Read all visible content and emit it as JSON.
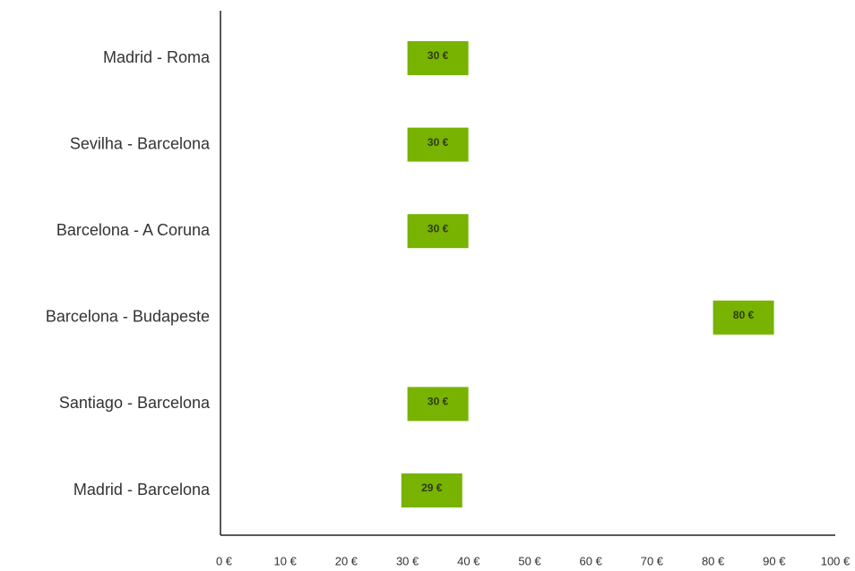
{
  "chart_data": {
    "type": "dot",
    "categories": [
      "Madrid - Roma",
      "Sevilha - Barcelona",
      "Barcelona - A Coruna",
      "Barcelona - Budapeste",
      "Santiago - Barcelona",
      "Madrid - Barcelona"
    ],
    "values": [
      30,
      30,
      30,
      80,
      30,
      29
    ],
    "value_labels": [
      "30 €",
      "30 €",
      "30 €",
      "80 €",
      "30 €",
      "29 €"
    ],
    "color": "#77b300",
    "xlim": [
      0,
      100
    ],
    "xticks": [
      {
        "value": 0,
        "label": "0 €"
      },
      {
        "value": 10,
        "label": "10 €"
      },
      {
        "value": 20,
        "label": "20 €"
      },
      {
        "value": 30,
        "label": "30 €"
      },
      {
        "value": 40,
        "label": "40 €"
      },
      {
        "value": 50,
        "label": "50 €"
      },
      {
        "value": 60,
        "label": "60 €"
      },
      {
        "value": 70,
        "label": "70 €"
      },
      {
        "value": 80,
        "label": "80 €"
      },
      {
        "value": 90,
        "label": "90 €"
      },
      {
        "value": 100,
        "label": "100 €"
      }
    ],
    "grid": false
  }
}
